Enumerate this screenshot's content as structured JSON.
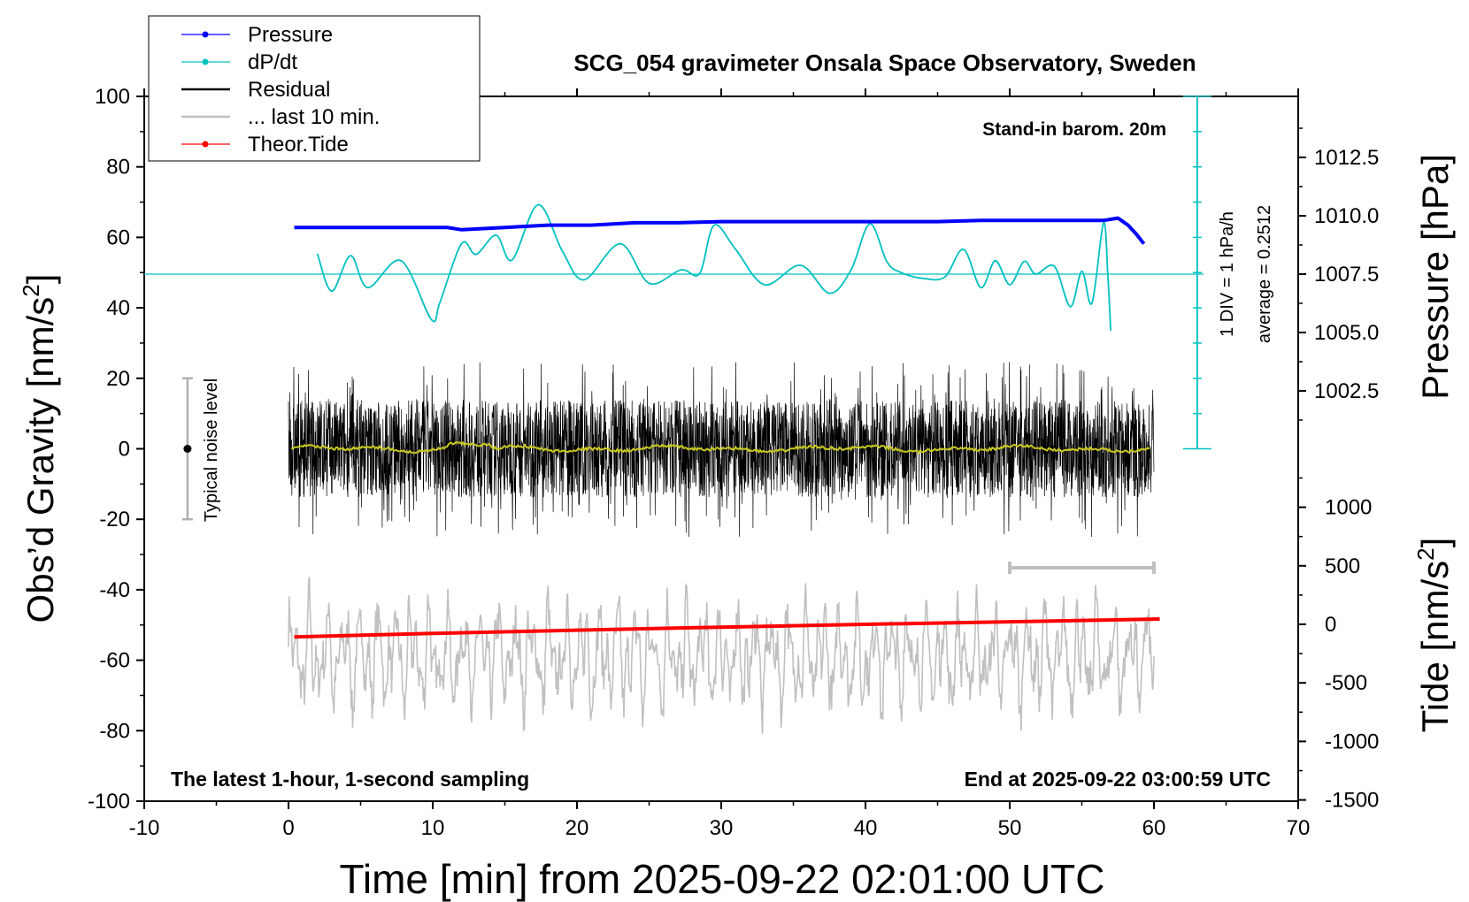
{
  "chart_data": {
    "type": "line",
    "title": "SCG_054 gravimeter Onsala Space Observatory, Sweden",
    "xlabel": "Time [min] from 2025-09-22 02:01:00 UTC",
    "ylabel_left": "Obs’d Gravity [nm/s",
    "ylabel_left_sup": "2",
    "ylabel_left_end": "]",
    "ylabel_right_top": "Pressure [hPa]",
    "ylabel_right_bottom": "Tide [nm/s",
    "ylabel_right_bottom_sup": "2",
    "ylabel_right_bottom_end": "]",
    "xlim": [
      -10,
      70
    ],
    "ylim": [
      -100,
      100
    ],
    "x_ticks": [
      "-10",
      "0",
      "10",
      "20",
      "30",
      "40",
      "50",
      "60",
      "70"
    ],
    "y_ticks": [
      "100",
      "80",
      "60",
      "40",
      "20",
      "0",
      "-20",
      "-40",
      "-60",
      "-80",
      "-100"
    ],
    "pressure_ticks": [
      "1012.5",
      "1010.0",
      "1007.5",
      "1005.0",
      "1002.5"
    ],
    "tide_ticks": [
      "1000",
      "500",
      "0",
      "-500",
      "-1000",
      "-1500"
    ],
    "annotations": {
      "stand_in": "Stand-in barom. 20m",
      "bottom_left": "The latest 1-hour, 1-second sampling",
      "bottom_right": "End at 2025-09-22 03:00:59 UTC",
      "noise": "Typical noise level",
      "div": "1 DIV = 1 hPa/h",
      "average": "average = 0.2512"
    },
    "legend": {
      "placement": "top-left",
      "entries": [
        {
          "label": "Pressure",
          "color": "#0000ff",
          "marker": true
        },
        {
          "label": "dP/dt",
          "color": "#00c0c0",
          "marker": true
        },
        {
          "label": "Residual",
          "color": "#000000",
          "marker": false
        },
        {
          "label": "... last 10 min.",
          "color": "#c0c0c0",
          "marker": false
        },
        {
          "label": "Theor.Tide",
          "color": "#ff0000",
          "marker": true
        }
      ]
    },
    "series": [
      {
        "name": "Pressure",
        "color": "#0000ff",
        "x": [
          0.4,
          3,
          6,
          9,
          11,
          12,
          15,
          18,
          21,
          24,
          27,
          30,
          33,
          36,
          39,
          42,
          45,
          48,
          51,
          53,
          55,
          56.5,
          57.5,
          58.2,
          58.8,
          59.3
        ],
        "y": [
          1009.5,
          1009.5,
          1009.5,
          1009.5,
          1009.5,
          1009.4,
          1009.5,
          1009.6,
          1009.6,
          1009.7,
          1009.7,
          1009.75,
          1009.75,
          1009.75,
          1009.75,
          1009.75,
          1009.75,
          1009.8,
          1009.8,
          1009.8,
          1009.8,
          1009.8,
          1009.9,
          1009.6,
          1009.2,
          1008.8
        ]
      },
      {
        "name": "dP/dt",
        "color": "#00c0c0",
        "x": [
          2,
          3,
          4.3,
          5.5,
          7.8,
          9.9,
          10.5,
          12,
          13,
          14.4,
          15.5,
          17.3,
          19,
          20.5,
          23,
          25,
          27.2,
          28.5,
          29.5,
          31,
          33,
          35.5,
          37.5,
          39,
          40.3,
          41.5,
          42.5,
          44,
          45.5,
          46.8,
          48,
          49,
          50,
          51,
          51.8,
          53.1,
          54.2,
          55,
          55.7,
          56.5,
          56.8,
          57
        ],
        "y": [
          0.58,
          -0.48,
          0.52,
          -0.38,
          0.38,
          -1.28,
          -0.8,
          0.86,
          0.56,
          1.1,
          0.4,
          1.96,
          0.64,
          -0.16,
          0.86,
          -0.26,
          0.12,
          0.02,
          1.38,
          0.7,
          -0.3,
          0.25,
          -0.54,
          0.12,
          1.42,
          0.34,
          0.04,
          -0.12,
          -0.08,
          0.7,
          -0.38,
          0.38,
          -0.3,
          0.36,
          0.0,
          0.22,
          -0.92,
          0.08,
          -0.82,
          1.45,
          0.0,
          -1.6
        ]
      },
      {
        "name": "Residual",
        "color": "#000000",
        "x_range": [
          0,
          60
        ],
        "y_range": [
          -25,
          25
        ]
      },
      {
        "name": "... last 10 min.",
        "color": "#c0c0c0",
        "x_range": [
          0,
          60
        ],
        "y_range": [
          -82,
          -36
        ]
      },
      {
        "name": "Theor.Tide",
        "color": "#ff0000",
        "x": [
          0.4,
          10,
          20,
          30,
          40,
          50,
          60.4
        ],
        "y": [
          -107,
          -78,
          -50,
          -24,
          0,
          22,
          45
        ]
      }
    ]
  }
}
